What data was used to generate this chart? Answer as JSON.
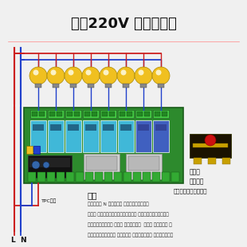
{
  "title": "控制220V 负载接线图",
  "title_fontsize": 13,
  "bg_color": "#f0f0f0",
  "board_color": "#2d8a2d",
  "board_border": "#1a5c1a",
  "relay_cyan": "#40b8d8",
  "relay_blue": "#4060c0",
  "bulb_color": "#f0c020",
  "bulb_shine": "#fffff0",
  "red_wire": "#cc2020",
  "blue_wire": "#2040cc",
  "label_tpc": "TPC供电",
  "label_ln": "L  N",
  "label_section": "说明",
  "label_common": "公共端",
  "label_no": "和常开端",
  "label_switch": "里面就是一个单刀开关",
  "note_lines": [
    "蓝色是零线 N 红色是火线 红线不能和蓝线短路",
    "公共端 和常开端里面就是一个单刀开关 控制器本来是没有输出的",
    "所以公共端连接一起 接火线 其实就是控制  火线断 来控制设备 断",
    "把设备的零线都接一起 接到零线上 因为不控制零线 只是控制了火线"
  ],
  "note_fontsize": 4.2,
  "switch_black": "#1a1200",
  "switch_red_dot": "#cc1010",
  "switch_gold": "#c8a000",
  "n_bulbs": 8
}
